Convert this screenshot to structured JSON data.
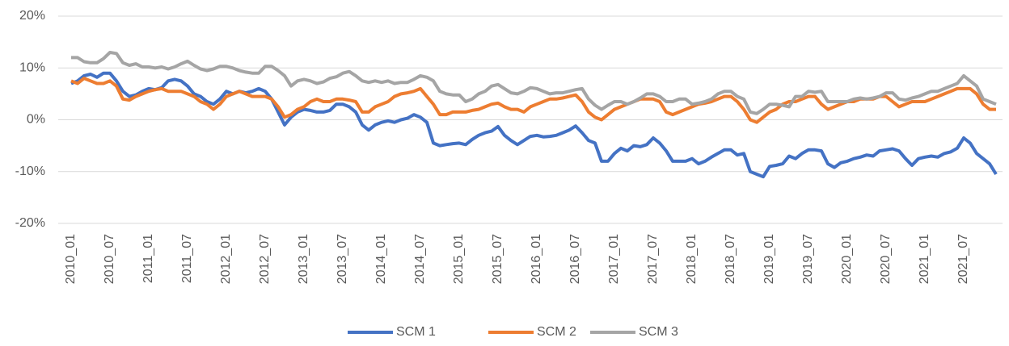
{
  "chart_data": {
    "type": "line",
    "categories": [
      "2010_01",
      null,
      null,
      null,
      null,
      null,
      "2010_07",
      null,
      null,
      null,
      null,
      null,
      "2011_01",
      null,
      null,
      null,
      null,
      null,
      "2011_07",
      null,
      null,
      null,
      null,
      null,
      "2012_01",
      null,
      null,
      null,
      null,
      null,
      "2012_07",
      null,
      null,
      null,
      null,
      null,
      "2013_01",
      null,
      null,
      null,
      null,
      null,
      "2013_07",
      null,
      null,
      null,
      null,
      null,
      "2014_01",
      null,
      null,
      null,
      null,
      null,
      "2014_07",
      null,
      null,
      null,
      null,
      null,
      "2015_01",
      null,
      null,
      null,
      null,
      null,
      "2015_07",
      null,
      null,
      null,
      null,
      null,
      "2016_01",
      null,
      null,
      null,
      null,
      null,
      "2016_07",
      null,
      null,
      null,
      null,
      null,
      "2017_01",
      null,
      null,
      null,
      null,
      null,
      "2017_07",
      null,
      null,
      null,
      null,
      null,
      "2018_01",
      null,
      null,
      null,
      null,
      null,
      "2018_07",
      null,
      null,
      null,
      null,
      null,
      "2019_01",
      null,
      null,
      null,
      null,
      null,
      "2019_07",
      null,
      null,
      null,
      null,
      null,
      "2020_01",
      null,
      null,
      null,
      null,
      null,
      "2020_07",
      null,
      null,
      null,
      null,
      null,
      "2021_01",
      null,
      null,
      null,
      null,
      null,
      "2021_07",
      null,
      null,
      null,
      null,
      null
    ],
    "series": [
      {
        "name": "SCM 1",
        "color": "#4472c4",
        "values": [
          7,
          7.5,
          8.5,
          8.8,
          8.2,
          9,
          9,
          7.5,
          5.5,
          4.5,
          4.8,
          5.5,
          6,
          5.8,
          6.2,
          7.5,
          7.8,
          7.5,
          6.5,
          5,
          4.5,
          3.5,
          3,
          4,
          5.5,
          5,
          5.5,
          5.2,
          5.5,
          6,
          5.5,
          4,
          1.5,
          -1,
          0.5,
          1.5,
          2,
          1.8,
          1.5,
          1.5,
          1.8,
          3,
          3,
          2.5,
          1.5,
          -1,
          -2,
          -1,
          -0.5,
          -0.2,
          -0.5,
          0,
          0.3,
          1,
          0.5,
          -0.5,
          -4.5,
          -5,
          -4.8,
          -4.6,
          -4.5,
          -4.8,
          -3.8,
          -3,
          -2.5,
          -2.2,
          -1.3,
          -3,
          -4,
          -4.8,
          -4,
          -3.2,
          -3,
          -3.3,
          -3.2,
          -3,
          -2.5,
          -2,
          -1.2,
          -2.5,
          -4,
          -4.5,
          -8,
          -8,
          -6.5,
          -5.5,
          -6,
          -5,
          -5.2,
          -4.8,
          -3.5,
          -4.5,
          -6,
          -8,
          -8,
          -8,
          -7.5,
          -8.5,
          -8,
          -7.2,
          -6.5,
          -5.8,
          -5.8,
          -6.8,
          -6.5,
          -10,
          -10.5,
          -11,
          -9,
          -8.8,
          -8.5,
          -7,
          -7.5,
          -6.5,
          -5.8,
          -5.8,
          -6,
          -8.5,
          -9.2,
          -8.3,
          -8,
          -7.5,
          -7.2,
          -6.8,
          -7,
          -6,
          -5.8,
          -5.6,
          -6,
          -7.5,
          -8.8,
          -7.5,
          -7.2,
          -7,
          -7.2,
          -6.5,
          -6.2,
          -5.5,
          -3.5,
          -4.5,
          -6.5,
          -7.5,
          -8.5,
          -10.5
        ]
      },
      {
        "name": "SCM 2",
        "color": "#ed7d31",
        "values": [
          7.5,
          7,
          8,
          7.5,
          7,
          7,
          7.5,
          6.5,
          4,
          3.8,
          4.5,
          5,
          5.5,
          5.8,
          6,
          5.5,
          5.5,
          5.5,
          5,
          4.5,
          3.5,
          3,
          2,
          3,
          4.5,
          5,
          5.5,
          5,
          4.5,
          4.5,
          4.5,
          4,
          2.5,
          0.5,
          1,
          2,
          2.5,
          3.5,
          4,
          3.5,
          3.5,
          4,
          4,
          3.8,
          3.5,
          1.5,
          1.5,
          2.5,
          3,
          3.5,
          4.5,
          5,
          5.2,
          5.5,
          6,
          4.5,
          3,
          1,
          1,
          1.5,
          1.5,
          1.5,
          1.8,
          2,
          2.5,
          3,
          3.2,
          2.5,
          2,
          2,
          1.5,
          2.5,
          3,
          3.5,
          4,
          4,
          4.2,
          4.5,
          4.8,
          3.5,
          1.5,
          0.5,
          0,
          1,
          2,
          2.5,
          3,
          3.5,
          4,
          4,
          4,
          3.5,
          1.5,
          1,
          1.5,
          2,
          2.5,
          3,
          3.2,
          3.5,
          4,
          4.5,
          4.5,
          3.5,
          2,
          0,
          -0.5,
          0.5,
          1.5,
          2,
          3,
          3.5,
          3.5,
          4,
          4.5,
          4.5,
          3,
          2,
          2.5,
          3,
          3.5,
          3.5,
          4,
          4,
          4,
          4.5,
          4.5,
          3.5,
          2.5,
          3,
          3.5,
          3.5,
          3.5,
          4,
          4.5,
          5,
          5.5,
          6,
          6,
          6,
          5,
          3,
          2,
          2
        ]
      },
      {
        "name": "SCM 3",
        "color": "#a5a5a5",
        "values": [
          12,
          12,
          11.2,
          11,
          11,
          11.8,
          13,
          12.8,
          11,
          10.5,
          10.8,
          10.2,
          10.2,
          10,
          10.2,
          9.8,
          10.2,
          10.8,
          11.3,
          10.5,
          9.8,
          9.5,
          9.8,
          10.3,
          10.3,
          10,
          9.5,
          9.2,
          9,
          9,
          10.3,
          10.3,
          9.5,
          8.5,
          6.5,
          7.5,
          7.8,
          7.5,
          7,
          7.3,
          8,
          8.3,
          9,
          9.3,
          8.5,
          7.5,
          7.2,
          7.5,
          7.2,
          7.5,
          7,
          7.2,
          7.2,
          7.8,
          8.5,
          8.2,
          7.5,
          5.5,
          5,
          4.8,
          4.8,
          3.5,
          4,
          5,
          5.5,
          6.5,
          6.8,
          6,
          5.2,
          5,
          5.5,
          6.2,
          6,
          5.5,
          5,
          5.2,
          5.2,
          5.5,
          5.8,
          6,
          4,
          2.8,
          2,
          2.8,
          3.5,
          3.5,
          3,
          3.5,
          4.2,
          5,
          5,
          4.5,
          3.5,
          3.5,
          4,
          4,
          3,
          3.2,
          3.5,
          4,
          5,
          5.5,
          5.5,
          4.5,
          4,
          1.5,
          1.2,
          2,
          3,
          3,
          2.8,
          2.5,
          4.5,
          4.5,
          5.5,
          5.3,
          5.5,
          3.5,
          3.5,
          3.5,
          3.5,
          4,
          4.2,
          4,
          4.2,
          4.5,
          5.2,
          5.2,
          4,
          3.8,
          4.2,
          4.5,
          5,
          5.5,
          5.5,
          6,
          6.5,
          7,
          8.5,
          7.5,
          6.5,
          4,
          3.5,
          3
        ]
      }
    ],
    "ylim": [
      -20,
      20
    ],
    "yticks": [
      {
        "value": -20,
        "label": "-20%"
      },
      {
        "value": -10,
        "label": "-10%"
      },
      {
        "value": 0,
        "label": "0%"
      },
      {
        "value": 10,
        "label": "10%"
      },
      {
        "value": 20,
        "label": "20%"
      }
    ],
    "grid": true,
    "legend": "bottom"
  }
}
